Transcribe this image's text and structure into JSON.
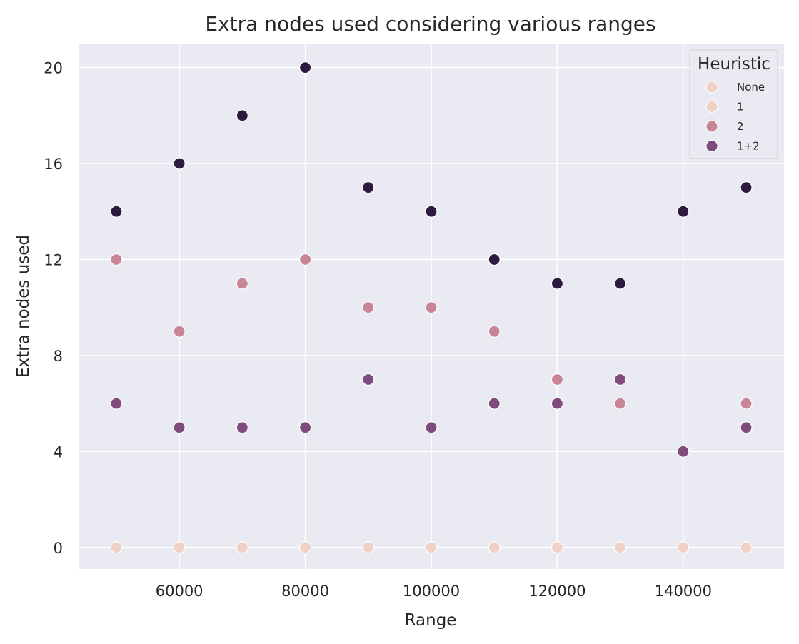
{
  "chart_data": {
    "type": "scatter",
    "title": "Extra nodes used considering various ranges",
    "xlabel": "Range",
    "ylabel": "Extra nodes used",
    "xlim": [
      44000,
      156000
    ],
    "ylim": [
      -0.9,
      21
    ],
    "xticks": [
      60000,
      80000,
      100000,
      120000,
      140000
    ],
    "yticks": [
      0,
      4,
      8,
      12,
      16,
      20
    ],
    "grid": true,
    "background": "#eaeaf2",
    "legend": {
      "title": "Heuristic",
      "placement": "top-right",
      "entries": [
        {
          "label": "None",
          "color": "#efd1c6"
        },
        {
          "label": "1",
          "color": "#efd1c6"
        },
        {
          "label": "2",
          "color": "#c98598"
        },
        {
          "label": "1+2",
          "color": "#7f4a7c"
        }
      ]
    },
    "x": [
      50000,
      60000,
      70000,
      80000,
      90000,
      100000,
      110000,
      120000,
      130000,
      140000,
      150000
    ],
    "series": [
      {
        "name": "None",
        "color": "#efd1c6",
        "values": [
          0,
          0,
          0,
          0,
          0,
          0,
          0,
          0,
          0,
          0,
          0
        ]
      },
      {
        "name": "2",
        "color": "#c98598",
        "values": [
          12,
          9,
          11,
          12,
          10,
          10,
          9,
          7,
          6,
          null,
          6
        ]
      },
      {
        "name": "1+2",
        "color": "#7f4a7c",
        "values": [
          6,
          5,
          5,
          5,
          7,
          5,
          6,
          6,
          7,
          4,
          5
        ]
      },
      {
        "color": "#2d1a3e",
        "values": [
          14,
          16,
          18,
          20,
          15,
          14,
          12,
          11,
          11,
          14,
          15
        ]
      }
    ]
  }
}
